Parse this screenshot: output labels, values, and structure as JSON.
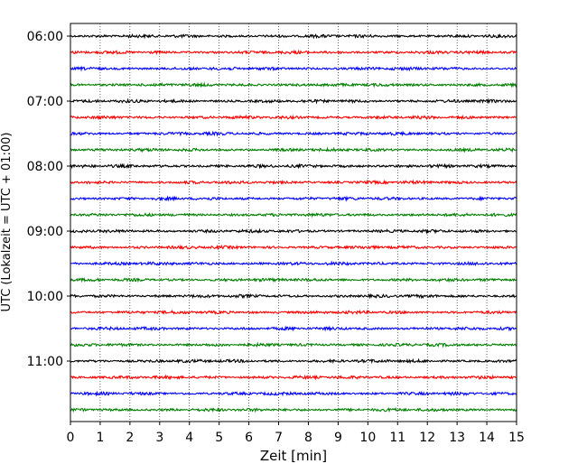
{
  "chart_data": {
    "type": "line",
    "title": "",
    "xlabel": "Zeit  [min]",
    "ylabel": "UTC (Lokalzeit = UTC + 01:00)",
    "xlim": [
      0,
      15
    ],
    "x_ticks": [
      0,
      1,
      2,
      3,
      4,
      5,
      6,
      7,
      8,
      9,
      10,
      11,
      12,
      13,
      14,
      15
    ],
    "x_tick_labels": [
      "0",
      "1",
      "2",
      "3",
      "4",
      "5",
      "6",
      "7",
      "8",
      "9",
      "10",
      "11",
      "12",
      "13",
      "14",
      "15"
    ],
    "y_tick_labels": [
      "06:00",
      "07:00",
      "08:00",
      "09:00",
      "10:00",
      "11:00"
    ],
    "y_tick_trace_index": [
      0,
      4,
      8,
      12,
      16,
      20
    ],
    "trace_interval_minutes": 15,
    "grid": {
      "x": true,
      "y": false,
      "style": "dotted"
    },
    "color_cycle": [
      "#000000",
      "#ff0000",
      "#0000ff",
      "#008000"
    ],
    "traces": [
      {
        "start": "06:00",
        "color": "#000000"
      },
      {
        "start": "06:15",
        "color": "#ff0000"
      },
      {
        "start": "06:30",
        "color": "#0000ff"
      },
      {
        "start": "06:45",
        "color": "#008000"
      },
      {
        "start": "07:00",
        "color": "#000000"
      },
      {
        "start": "07:15",
        "color": "#ff0000"
      },
      {
        "start": "07:30",
        "color": "#0000ff"
      },
      {
        "start": "07:45",
        "color": "#008000"
      },
      {
        "start": "08:00",
        "color": "#000000"
      },
      {
        "start": "08:15",
        "color": "#ff0000"
      },
      {
        "start": "08:30",
        "color": "#0000ff"
      },
      {
        "start": "08:45",
        "color": "#008000"
      },
      {
        "start": "09:00",
        "color": "#000000"
      },
      {
        "start": "09:15",
        "color": "#ff0000"
      },
      {
        "start": "09:30",
        "color": "#0000ff"
      },
      {
        "start": "09:45",
        "color": "#008000"
      },
      {
        "start": "10:00",
        "color": "#000000"
      },
      {
        "start": "10:15",
        "color": "#ff0000"
      },
      {
        "start": "10:30",
        "color": "#0000ff"
      },
      {
        "start": "10:45",
        "color": "#008000"
      },
      {
        "start": "11:00",
        "color": "#000000"
      },
      {
        "start": "11:15",
        "color": "#ff0000"
      },
      {
        "start": "11:30",
        "color": "#0000ff"
      },
      {
        "start": "11:45",
        "color": "#008000"
      }
    ]
  }
}
